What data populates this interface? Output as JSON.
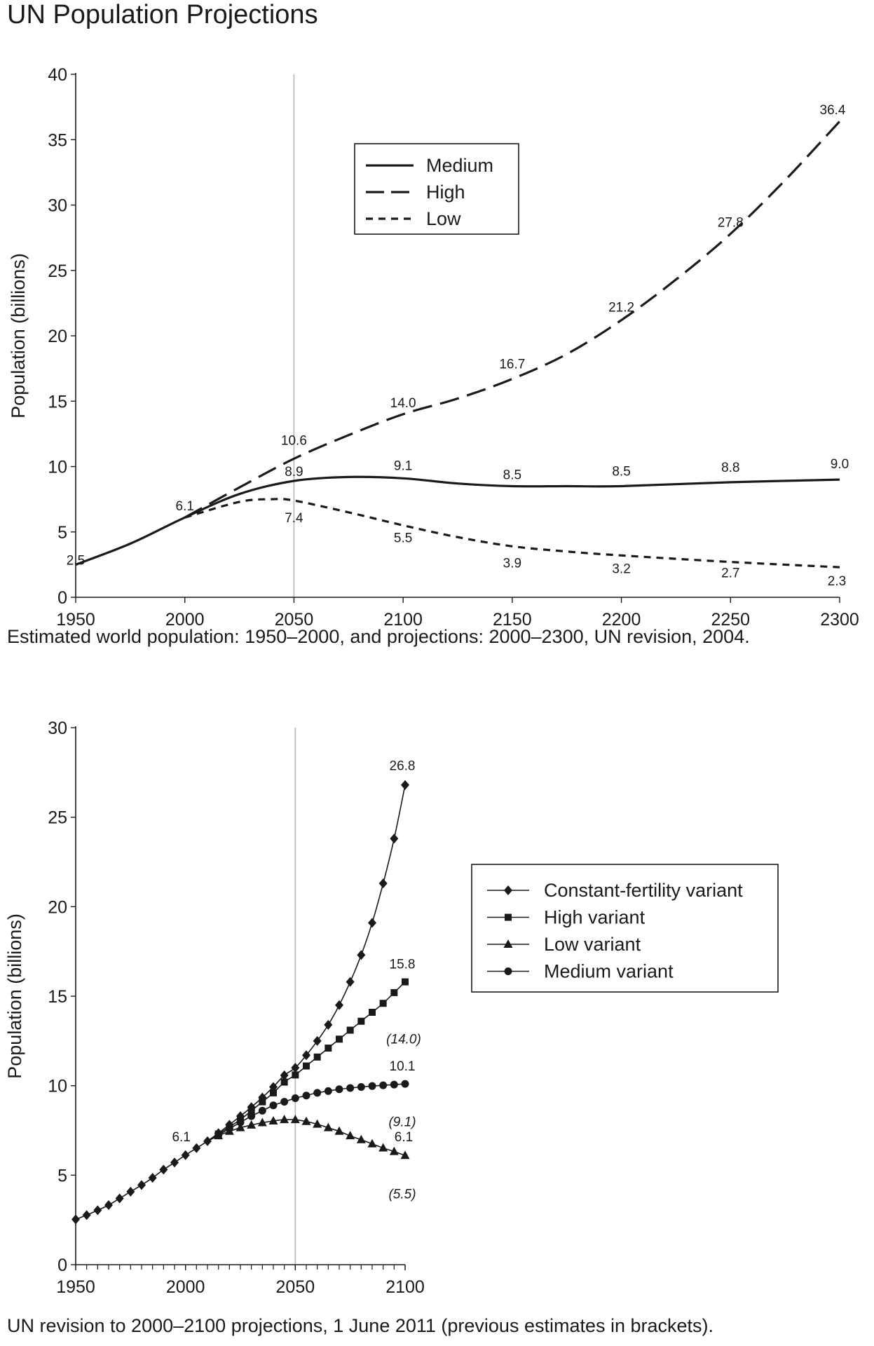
{
  "title": "UN Population Projections",
  "captions": {
    "top": "Estimated world population: 1950–2000, and projections: 2000–2300, UN revision, 2004.",
    "bottom": "UN revision to 2000–2100 projections, 1 June 2011 (previous estimates in brackets)."
  },
  "colors": {
    "ink": "#1a1a1a",
    "refline": "#b5b5b5"
  },
  "chart_data": [
    {
      "type": "line",
      "title": "",
      "xlabel": "",
      "ylabel": "Population (billions)",
      "xlim": [
        1950,
        2300
      ],
      "ylim": [
        0,
        40
      ],
      "xticks": [
        1950,
        2000,
        2050,
        2100,
        2150,
        2200,
        2250,
        2300
      ],
      "yticks": [
        0,
        5,
        10,
        15,
        20,
        25,
        30,
        35,
        40
      ],
      "reference_x": 2050,
      "legend_position": "top-center",
      "series": [
        {
          "name": "Medium",
          "style": "solid",
          "x": [
            1950,
            1975,
            2000,
            2025,
            2050,
            2075,
            2100,
            2125,
            2150,
            2175,
            2200,
            2250,
            2300
          ],
          "values": [
            2.5,
            4.1,
            6.1,
            7.9,
            8.9,
            9.2,
            9.1,
            8.7,
            8.5,
            8.5,
            8.5,
            8.8,
            9.0
          ]
        },
        {
          "name": "High",
          "style": "long-dash",
          "x": [
            2000,
            2025,
            2050,
            2075,
            2100,
            2125,
            2150,
            2175,
            2200,
            2225,
            2250,
            2275,
            2300
          ],
          "values": [
            6.1,
            8.4,
            10.6,
            12.4,
            14.0,
            15.2,
            16.7,
            18.6,
            21.2,
            24.3,
            27.8,
            31.9,
            36.4
          ]
        },
        {
          "name": "Low",
          "style": "short-dash",
          "x": [
            2000,
            2025,
            2040,
            2050,
            2075,
            2100,
            2125,
            2150,
            2175,
            2200,
            2250,
            2300
          ],
          "values": [
            6.1,
            7.3,
            7.5,
            7.4,
            6.5,
            5.5,
            4.6,
            3.9,
            3.5,
            3.2,
            2.7,
            2.3
          ]
        }
      ],
      "annotations": [
        {
          "x": 1950,
          "y": 2.5,
          "text": "2.5"
        },
        {
          "x": 2000,
          "y": 6.1,
          "text": "6.1"
        },
        {
          "x": 2050,
          "y": 10.6,
          "text": "10.6"
        },
        {
          "x": 2050,
          "y": 8.9,
          "text": "8.9"
        },
        {
          "x": 2050,
          "y": 7.4,
          "text": "7.4"
        },
        {
          "x": 2100,
          "y": 14.0,
          "text": "14.0"
        },
        {
          "x": 2100,
          "y": 9.1,
          "text": "9.1"
        },
        {
          "x": 2100,
          "y": 5.5,
          "text": "5.5"
        },
        {
          "x": 2150,
          "y": 16.7,
          "text": "16.7"
        },
        {
          "x": 2150,
          "y": 8.5,
          "text": "8.5"
        },
        {
          "x": 2150,
          "y": 3.9,
          "text": "3.9"
        },
        {
          "x": 2200,
          "y": 21.2,
          "text": "21.2"
        },
        {
          "x": 2200,
          "y": 8.5,
          "text": "8.5"
        },
        {
          "x": 2200,
          "y": 3.2,
          "text": "3.2"
        },
        {
          "x": 2250,
          "y": 27.8,
          "text": "27.8"
        },
        {
          "x": 2250,
          "y": 8.8,
          "text": "8.8"
        },
        {
          "x": 2250,
          "y": 2.7,
          "text": "2.7"
        },
        {
          "x": 2300,
          "y": 36.4,
          "text": "36.4"
        },
        {
          "x": 2300,
          "y": 9.0,
          "text": "9.0"
        },
        {
          "x": 2300,
          "y": 2.3,
          "text": "2.3"
        }
      ]
    },
    {
      "type": "line",
      "title": "",
      "xlabel": "",
      "ylabel": "Population (billions)",
      "xlim": [
        1950,
        2100
      ],
      "ylim": [
        0,
        30
      ],
      "xticks": [
        1950,
        2000,
        2050,
        2100
      ],
      "yticks": [
        0,
        5,
        10,
        15,
        20,
        25,
        30
      ],
      "minor_xtick_step": 5,
      "reference_x": 2050,
      "legend_position": "right",
      "shared_x": [
        1950,
        1955,
        1960,
        1965,
        1970,
        1975,
        1980,
        1985,
        1990,
        1995,
        2000,
        2005,
        2010
      ],
      "shared_values": [
        2.53,
        2.77,
        3.04,
        3.33,
        3.7,
        4.08,
        4.45,
        4.85,
        5.31,
        5.71,
        6.12,
        6.51,
        6.9
      ],
      "x": [
        2015,
        2020,
        2025,
        2030,
        2035,
        2040,
        2045,
        2050,
        2055,
        2060,
        2065,
        2070,
        2075,
        2080,
        2085,
        2090,
        2095,
        2100
      ],
      "series": [
        {
          "name": "Constant-fertility variant",
          "marker": "diamond",
          "values": [
            7.35,
            7.82,
            8.3,
            8.8,
            9.34,
            9.93,
            10.58,
            11.0,
            11.7,
            12.5,
            13.4,
            14.5,
            15.8,
            17.3,
            19.1,
            21.3,
            23.8,
            26.8
          ]
        },
        {
          "name": "High variant",
          "marker": "square",
          "values": [
            7.3,
            7.7,
            8.1,
            8.6,
            9.1,
            9.6,
            10.2,
            10.6,
            11.1,
            11.6,
            12.1,
            12.6,
            13.1,
            13.6,
            14.1,
            14.6,
            15.2,
            15.8
          ]
        },
        {
          "name": "Low variant",
          "marker": "triangle",
          "values": [
            7.2,
            7.45,
            7.65,
            7.8,
            7.93,
            8.03,
            8.1,
            8.1,
            8.0,
            7.85,
            7.65,
            7.45,
            7.2,
            6.98,
            6.75,
            6.52,
            6.32,
            6.1
          ]
        },
        {
          "name": "Medium variant",
          "marker": "circle",
          "values": [
            7.25,
            7.6,
            7.95,
            8.3,
            8.6,
            8.9,
            9.1,
            9.3,
            9.45,
            9.6,
            9.7,
            9.8,
            9.87,
            9.93,
            9.98,
            10.02,
            10.06,
            10.1
          ]
        }
      ],
      "annotations": [
        {
          "x": 2000,
          "y": 6.1,
          "text": "6.1",
          "italic": false
        },
        {
          "x": 2100,
          "y": 26.8,
          "text": "26.8",
          "italic": false
        },
        {
          "x": 2100,
          "y": 15.8,
          "text": "15.8",
          "italic": false
        },
        {
          "x": 2100,
          "y": 14.0,
          "text": "(14.0)",
          "italic": true
        },
        {
          "x": 2100,
          "y": 10.1,
          "text": "10.1",
          "italic": false
        },
        {
          "x": 2100,
          "y": 9.1,
          "text": "(9.1)",
          "italic": true
        },
        {
          "x": 2100,
          "y": 6.1,
          "text": "6.1",
          "italic": false
        },
        {
          "x": 2100,
          "y": 5.5,
          "text": "(5.5)",
          "italic": true
        }
      ]
    }
  ]
}
